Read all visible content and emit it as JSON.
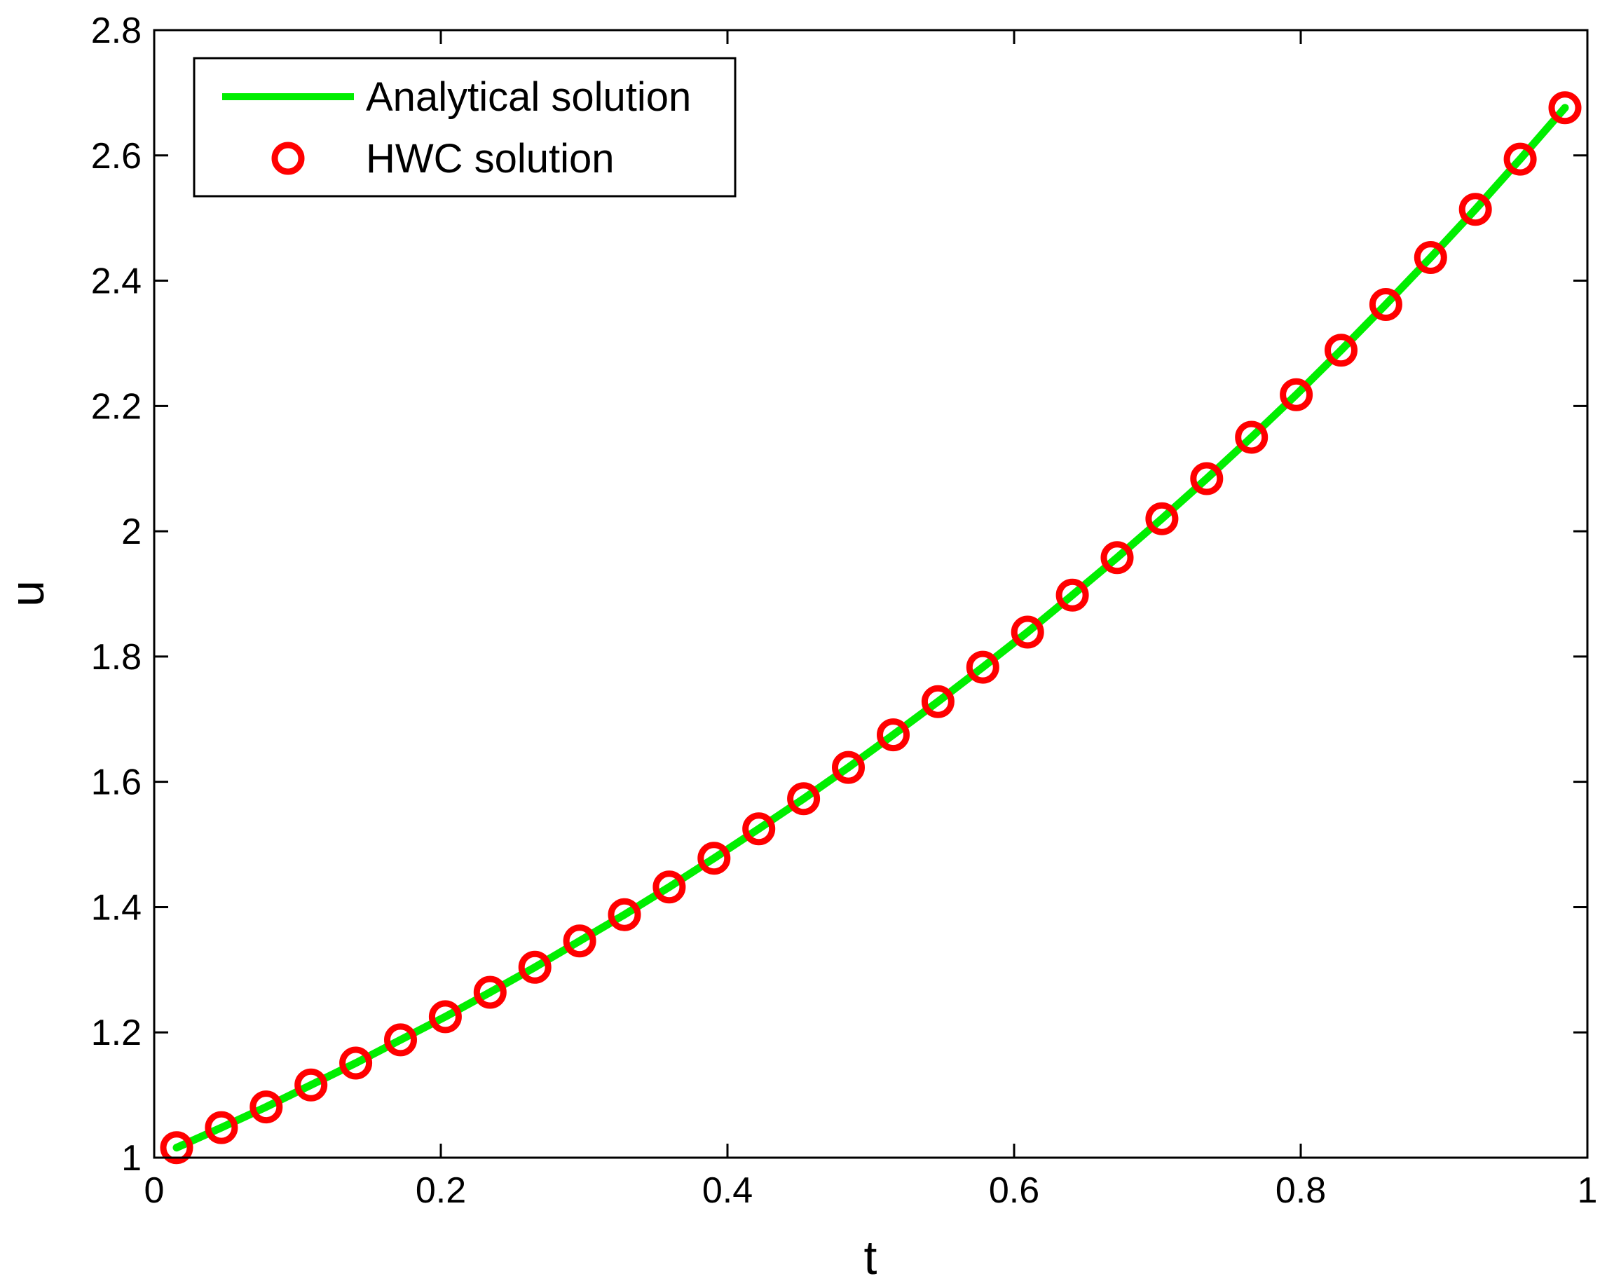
{
  "chart_data": {
    "type": "line",
    "title": "",
    "xlabel": "t",
    "ylabel": "u",
    "xlim": [
      0,
      1
    ],
    "ylim": [
      1,
      2.8
    ],
    "xticks": [
      "0",
      "0.2",
      "0.4",
      "0.6",
      "0.8",
      "1"
    ],
    "yticks": [
      "1",
      "1.2",
      "1.4",
      "1.6",
      "1.8",
      "2",
      "2.2",
      "2.4",
      "2.6",
      "2.8"
    ],
    "grid": false,
    "legend_position": "top-left",
    "series": [
      {
        "name": "Analytical solution",
        "style": "line",
        "color": "#00ee00",
        "x": [
          0.015625,
          0.046875,
          0.078125,
          0.109375,
          0.140625,
          0.171875,
          0.203125,
          0.234375,
          0.265625,
          0.296875,
          0.328125,
          0.359375,
          0.390625,
          0.421875,
          0.453125,
          0.484375,
          0.515625,
          0.546875,
          0.578125,
          0.609375,
          0.640625,
          0.671875,
          0.703125,
          0.734375,
          0.765625,
          0.796875,
          0.828125,
          0.859375,
          0.890625,
          0.921875,
          0.953125,
          0.984375
        ],
        "y": [
          1.016,
          1.048,
          1.081,
          1.116,
          1.151,
          1.188,
          1.225,
          1.264,
          1.304,
          1.346,
          1.388,
          1.432,
          1.478,
          1.525,
          1.573,
          1.623,
          1.675,
          1.728,
          1.783,
          1.839,
          1.898,
          1.958,
          2.02,
          2.084,
          2.15,
          2.218,
          2.289,
          2.362,
          2.437,
          2.514,
          2.594,
          2.676
        ]
      },
      {
        "name": "HWC solution",
        "style": "marker-circle",
        "color": "#ff0000",
        "x": [
          0.015625,
          0.046875,
          0.078125,
          0.109375,
          0.140625,
          0.171875,
          0.203125,
          0.234375,
          0.265625,
          0.296875,
          0.328125,
          0.359375,
          0.390625,
          0.421875,
          0.453125,
          0.484375,
          0.515625,
          0.546875,
          0.578125,
          0.609375,
          0.640625,
          0.671875,
          0.703125,
          0.734375,
          0.765625,
          0.796875,
          0.828125,
          0.859375,
          0.890625,
          0.921875,
          0.953125,
          0.984375
        ],
        "y": [
          1.016,
          1.048,
          1.081,
          1.116,
          1.151,
          1.188,
          1.225,
          1.264,
          1.304,
          1.346,
          1.388,
          1.432,
          1.478,
          1.525,
          1.573,
          1.623,
          1.675,
          1.728,
          1.783,
          1.839,
          1.898,
          1.958,
          2.02,
          2.084,
          2.15,
          2.218,
          2.289,
          2.362,
          2.437,
          2.514,
          2.594,
          2.676
        ]
      }
    ]
  }
}
